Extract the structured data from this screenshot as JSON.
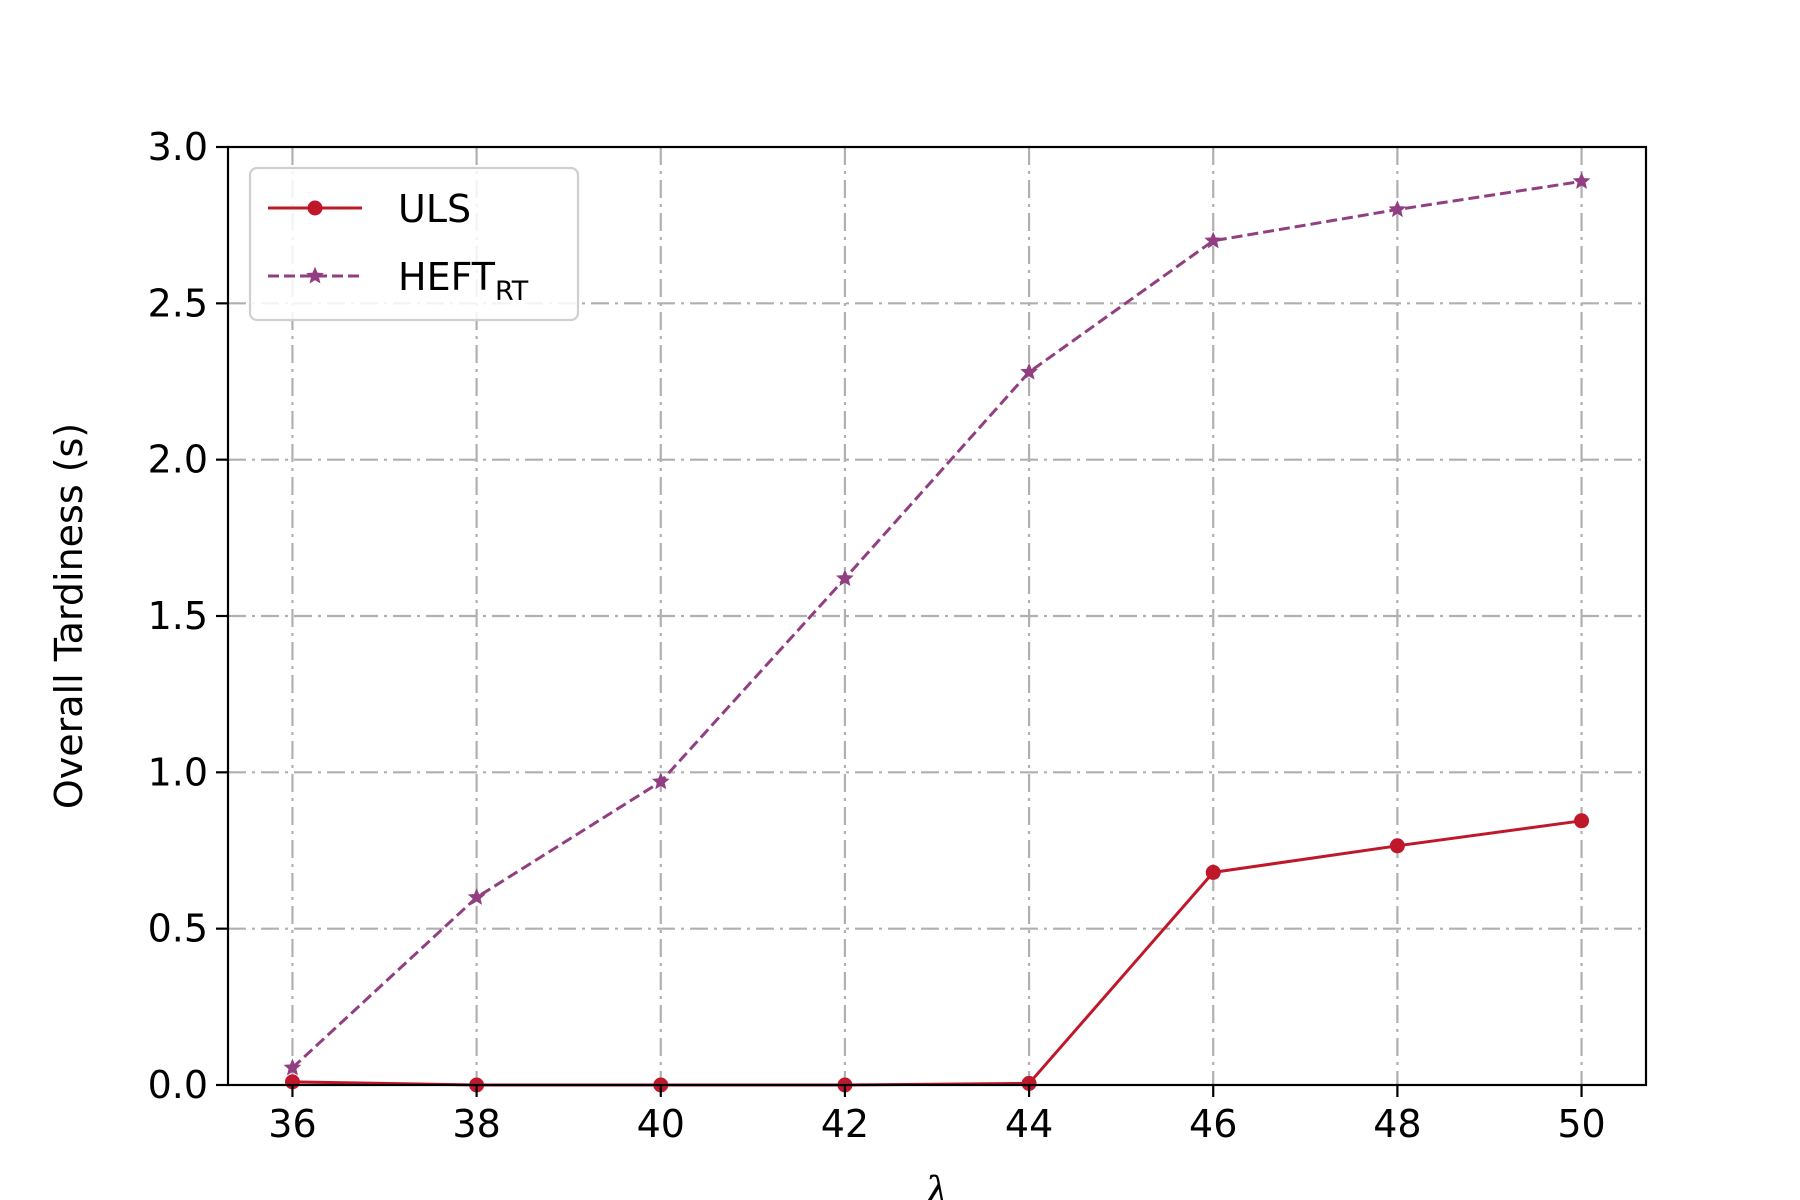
{
  "chart_data": {
    "type": "line",
    "x": [
      36,
      38,
      40,
      42,
      44,
      46,
      48,
      50
    ],
    "xlabel": "λ",
    "ylabel": "Overall Tardiness (s)",
    "xlim": [
      35.3,
      50.7
    ],
    "ylim": [
      0.0,
      3.0
    ],
    "xticks": [
      "36",
      "38",
      "40",
      "42",
      "44",
      "46",
      "48",
      "50"
    ],
    "yticks": [
      "0.0",
      "0.5",
      "1.0",
      "1.5",
      "2.0",
      "2.5",
      "3.0"
    ],
    "grid": true,
    "legend_position": "top-left",
    "series": [
      {
        "name": "ULS",
        "values": [
          0.01,
          0.0,
          0.0,
          0.0,
          0.005,
          0.68,
          0.765,
          0.845
        ],
        "color": "#c0182b",
        "line_style": "solid",
        "marker": "circle"
      },
      {
        "name": "HEFT",
        "name_subscript": "RT",
        "values": [
          0.055,
          0.6,
          0.97,
          1.62,
          2.28,
          2.7,
          2.8,
          2.89
        ],
        "color": "#923f82",
        "line_style": "dashed",
        "marker": "star"
      }
    ]
  }
}
